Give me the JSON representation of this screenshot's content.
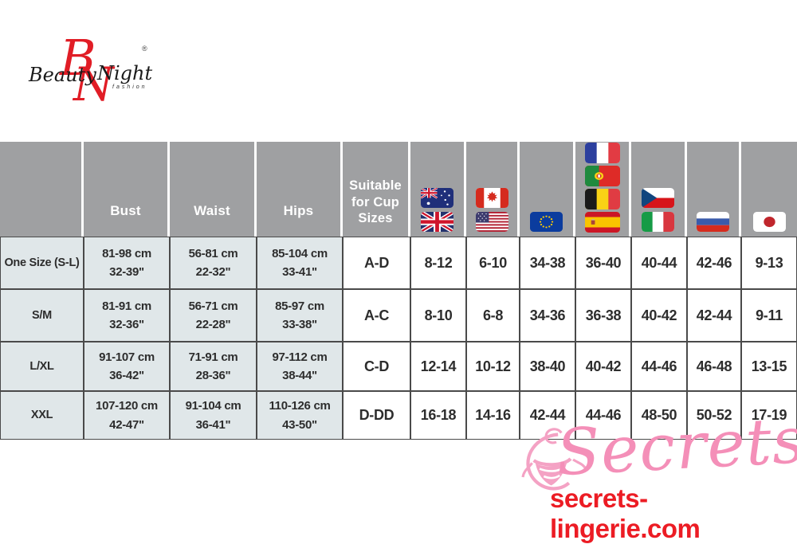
{
  "brand": {
    "monogram_b": "B",
    "monogram_n": "N",
    "name_part1": "Beauty",
    "name_part2": "Night",
    "registered": "®",
    "tagline": "fashion"
  },
  "table": {
    "columns": [
      {
        "id": "size",
        "header": ""
      },
      {
        "id": "bust",
        "header": "Bust"
      },
      {
        "id": "waist",
        "header": "Waist"
      },
      {
        "id": "hips",
        "header": "Hips"
      },
      {
        "id": "cup",
        "header": "Suitable for Cup Sizes"
      },
      {
        "id": "au_uk",
        "flags": [
          "australia",
          "united-kingdom"
        ]
      },
      {
        "id": "ca_us",
        "flags": [
          "canada",
          "united-states"
        ]
      },
      {
        "id": "eu",
        "flags": [
          "european-union"
        ]
      },
      {
        "id": "fr_pt_be_es",
        "flags": [
          "france",
          "portugal",
          "belgium",
          "spain"
        ]
      },
      {
        "id": "cz_it",
        "flags": [
          "czech-republic",
          "italy"
        ]
      },
      {
        "id": "ru",
        "flags": [
          "russia"
        ]
      },
      {
        "id": "jp",
        "flags": [
          "japan"
        ]
      }
    ],
    "rows": [
      [
        "One Size (S-L)",
        "81-98 cm\n32-39\"",
        "56-81 cm\n22-32\"",
        "85-104 cm\n33-41\"",
        "A-D",
        "8-12",
        "6-10",
        "34-38",
        "36-40",
        "40-44",
        "42-46",
        "9-13"
      ],
      [
        "S/M",
        "81-91 cm\n32-36\"",
        "56-71 cm\n22-28\"",
        "85-97 cm\n33-38\"",
        "A-C",
        "8-10",
        "6-8",
        "34-36",
        "36-38",
        "40-42",
        "42-44",
        "9-11"
      ],
      [
        "L/XL",
        "91-107 cm\n36-42\"",
        "71-91 cm\n28-36\"",
        "97-112 cm\n38-44\"",
        "C-D",
        "12-14",
        "10-12",
        "38-40",
        "40-42",
        "44-46",
        "46-48",
        "13-15"
      ],
      [
        "XXL",
        "107-120 cm\n42-47\"",
        "91-104 cm\n36-41\"",
        "110-126 cm\n43-50\"",
        "D-DD",
        "16-18",
        "14-16",
        "42-44",
        "44-46",
        "48-50",
        "50-52",
        "17-19"
      ]
    ]
  },
  "watermark": {
    "script": "Secrets",
    "site": "secrets-lingerie.com"
  },
  "colors": {
    "header_gray": "#9fa0a2",
    "light_cell": "#e0e7e9",
    "border": "#4a4a4a",
    "logo_red": "#e11d26",
    "watermark_pink": "#f48fb8",
    "site_red": "#ec1c24"
  }
}
